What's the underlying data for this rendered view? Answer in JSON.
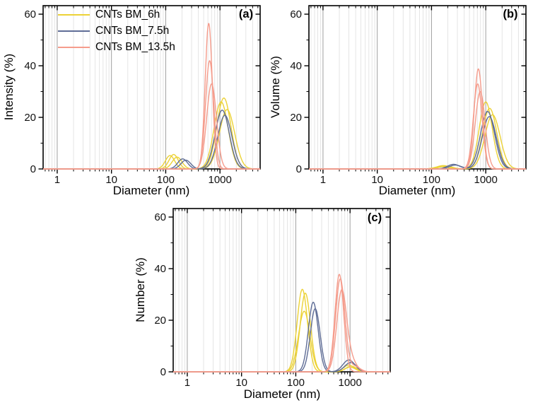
{
  "legend": {
    "items": [
      {
        "label": "CNTs BM_6h",
        "color": "#ecd236"
      },
      {
        "label": "CNTs BM_7.5h",
        "color": "#5f6d96"
      },
      {
        "label": "CNTs BM_13.5h",
        "color": "#f59c8c"
      }
    ]
  },
  "style": {
    "axis_color": "#000000",
    "major_grid_color": "#9f9f9f",
    "minor_grid_color": "#e2e2e2",
    "tick_label_color": "#111111"
  },
  "chart_data": [
    {
      "type": "line",
      "panel_label": "(a)",
      "xlabel": "Diameter (nm)",
      "ylabel": "Intensity (%)",
      "x_scale": "log",
      "xlim": [
        0.55,
        5500
      ],
      "ylim": [
        0,
        63.3
      ],
      "x_ticks": [
        1,
        10,
        100,
        1000
      ],
      "x_tick_labels": [
        "1",
        "10",
        "100",
        "1000"
      ],
      "y_ticks": [
        0,
        20,
        40,
        60
      ],
      "y_minor_ticks": [
        10,
        30,
        50
      ],
      "grid": "vertical-only",
      "legend_position": "top-left",
      "series": [
        {
          "name": "CNTs BM_6h",
          "color": "#ecd236",
          "runs": [
            [
              {
                "center_nm": 120,
                "height_pct": 5.2,
                "width_log": 0.085
              },
              {
                "center_nm": 1050,
                "height_pct": 26.0,
                "width_log": 0.13
              }
            ],
            [
              {
                "center_nm": 140,
                "height_pct": 5.6,
                "width_log": 0.085
              },
              {
                "center_nm": 1180,
                "height_pct": 27.5,
                "width_log": 0.13
              }
            ],
            [
              {
                "center_nm": 162,
                "height_pct": 4.6,
                "width_log": 0.09
              },
              {
                "center_nm": 1350,
                "height_pct": 23.0,
                "width_log": 0.14
              }
            ]
          ]
        },
        {
          "name": "CNTs BM_7.5h",
          "color": "#5f6d96",
          "runs": [
            [
              {
                "center_nm": 205,
                "height_pct": 3.9,
                "width_log": 0.09
              },
              {
                "center_nm": 1100,
                "height_pct": 22.8,
                "width_log": 0.13
              }
            ],
            [
              {
                "center_nm": 235,
                "height_pct": 3.4,
                "width_log": 0.09
              },
              {
                "center_nm": 1230,
                "height_pct": 20.8,
                "width_log": 0.13
              }
            ]
          ]
        },
        {
          "name": "CNTs BM_13.5h",
          "color": "#f59c8c",
          "runs": [
            [
              {
                "center_nm": 620,
                "height_pct": 56.5,
                "width_log": 0.065
              }
            ],
            [
              {
                "center_nm": 645,
                "height_pct": 42.0,
                "width_log": 0.075
              }
            ],
            [
              {
                "center_nm": 700,
                "height_pct": 33.0,
                "width_log": 0.09
              }
            ]
          ]
        }
      ]
    },
    {
      "type": "line",
      "panel_label": "(b)",
      "xlabel": "Diameter (nm)",
      "ylabel": "Volume (%)",
      "x_scale": "log",
      "xlim": [
        0.55,
        5500
      ],
      "ylim": [
        0,
        63.3
      ],
      "x_ticks": [
        1,
        10,
        100,
        1000
      ],
      "x_tick_labels": [
        "1",
        "10",
        "100",
        "1000"
      ],
      "y_ticks": [
        0,
        20,
        40,
        60
      ],
      "y_minor_ticks": [
        10,
        30,
        50
      ],
      "grid": "vertical-only",
      "series": [
        {
          "name": "CNTs BM_6h",
          "color": "#ecd236",
          "runs": [
            [
              {
                "center_nm": 165,
                "height_pct": 1.3,
                "width_log": 0.12
              },
              {
                "center_nm": 1000,
                "height_pct": 26.0,
                "width_log": 0.12
              }
            ],
            [
              {
                "center_nm": 185,
                "height_pct": 1.1,
                "width_log": 0.12
              },
              {
                "center_nm": 1180,
                "height_pct": 23.5,
                "width_log": 0.13
              }
            ],
            [
              {
                "center_nm": 150,
                "height_pct": 0.9,
                "width_log": 0.12
              },
              {
                "center_nm": 1330,
                "height_pct": 21.0,
                "width_log": 0.14
              }
            ]
          ]
        },
        {
          "name": "CNTs BM_7.5h",
          "color": "#5f6d96",
          "runs": [
            [
              {
                "center_nm": 255,
                "height_pct": 1.8,
                "width_log": 0.11
              },
              {
                "center_nm": 1080,
                "height_pct": 22.3,
                "width_log": 0.13
              }
            ],
            [
              {
                "center_nm": 275,
                "height_pct": 1.5,
                "width_log": 0.11
              },
              {
                "center_nm": 1160,
                "height_pct": 20.3,
                "width_log": 0.13
              }
            ]
          ]
        },
        {
          "name": "CNTs BM_13.5h",
          "color": "#f59c8c",
          "runs": [
            [
              {
                "center_nm": 730,
                "height_pct": 38.8,
                "width_log": 0.075
              }
            ],
            [
              {
                "center_nm": 710,
                "height_pct": 33.0,
                "width_log": 0.08
              }
            ],
            [
              {
                "center_nm": 790,
                "height_pct": 30.0,
                "width_log": 0.09
              }
            ]
          ]
        }
      ]
    },
    {
      "type": "line",
      "panel_label": "(c)",
      "xlabel": "Diameter (nm)",
      "ylabel": "Number (%)",
      "x_scale": "log",
      "xlim": [
        0.55,
        5500
      ],
      "ylim": [
        0,
        63.3
      ],
      "x_ticks": [
        1,
        10,
        100,
        1000
      ],
      "x_tick_labels": [
        "1",
        "10",
        "100",
        "1000"
      ],
      "y_ticks": [
        0,
        20,
        40,
        60
      ],
      "y_minor_ticks": [
        10,
        30,
        50
      ],
      "grid": "vertical-only",
      "series": [
        {
          "name": "CNTs BM_6h",
          "color": "#ecd236",
          "runs": [
            [
              {
                "center_nm": 132,
                "height_pct": 32.0,
                "width_log": 0.095
              },
              {
                "center_nm": 950,
                "height_pct": 2.6,
                "width_log": 0.1
              }
            ],
            [
              {
                "center_nm": 150,
                "height_pct": 30.5,
                "width_log": 0.095
              },
              {
                "center_nm": 1050,
                "height_pct": 2.2,
                "width_log": 0.1
              }
            ],
            [
              {
                "center_nm": 143,
                "height_pct": 23.5,
                "width_log": 0.105
              },
              {
                "center_nm": 1000,
                "height_pct": 1.8,
                "width_log": 0.1
              }
            ]
          ]
        },
        {
          "name": "CNTs BM_7.5h",
          "color": "#5f6d96",
          "runs": [
            [
              {
                "center_nm": 210,
                "height_pct": 27.0,
                "width_log": 0.09
              },
              {
                "center_nm": 950,
                "height_pct": 4.6,
                "width_log": 0.11
              }
            ],
            [
              {
                "center_nm": 228,
                "height_pct": 24.5,
                "width_log": 0.09
              },
              {
                "center_nm": 1030,
                "height_pct": 3.6,
                "width_log": 0.11
              }
            ]
          ]
        },
        {
          "name": "CNTs BM_13.5h",
          "color": "#f59c8c",
          "runs": [
            [
              {
                "center_nm": 635,
                "height_pct": 37.8,
                "width_log": 0.08
              }
            ],
            [
              {
                "center_nm": 660,
                "height_pct": 36.0,
                "width_log": 0.085
              },
              {
                "center_nm": 1200,
                "height_pct": 2.2,
                "width_log": 0.1
              }
            ],
            [
              {
                "center_nm": 700,
                "height_pct": 31.0,
                "width_log": 0.09
              },
              {
                "center_nm": 1050,
                "height_pct": 4.2,
                "width_log": 0.1
              }
            ]
          ]
        }
      ]
    }
  ]
}
